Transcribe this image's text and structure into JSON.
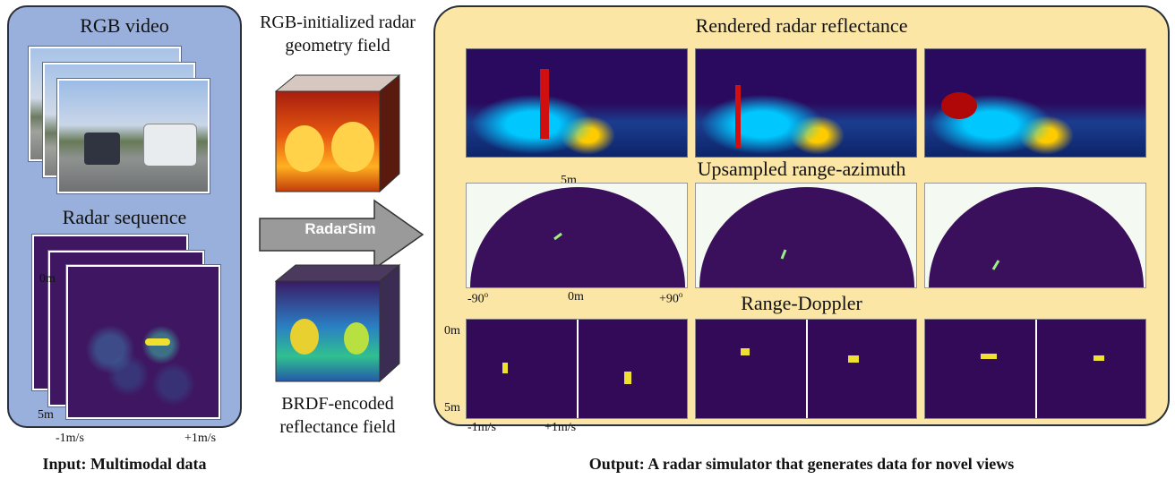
{
  "input_panel": {
    "rgb_title": "RGB video",
    "radar_title": "Radar sequence",
    "radar_ticks": {
      "top": "0m",
      "bottom": "5m",
      "left": "-1m/s",
      "right": "+1m/s"
    },
    "caption": "Input: Multimodal data"
  },
  "middle": {
    "geometry_label_line1": "RGB-initialized radar",
    "geometry_label_line2": "geometry field",
    "arrow_label": "RadarSim",
    "reflectance_label_line1": "BRDF-encoded",
    "reflectance_label_line2": "reflectance field"
  },
  "output_panel": {
    "rendered_title": "Rendered radar reflectance",
    "range_azimuth_title": "Upsampled range-azimuth",
    "range_azimuth_ticks": {
      "top": "5m",
      "left": "-90",
      "center": "0m",
      "right": "+90",
      "degree": "o"
    },
    "range_doppler_title": "Range-Doppler",
    "range_doppler_ticks": {
      "top": "0m",
      "bottom": "5m",
      "left": "-1m/s",
      "right": "+1m/s"
    },
    "caption": "Output: A radar simulator that generates data for novel views"
  },
  "colors": {
    "input_bg": "#9ab0dc",
    "output_bg": "#fbe6a6",
    "arrow_fill": "#9a9a9a",
    "radar_bg": "#3e1661"
  }
}
